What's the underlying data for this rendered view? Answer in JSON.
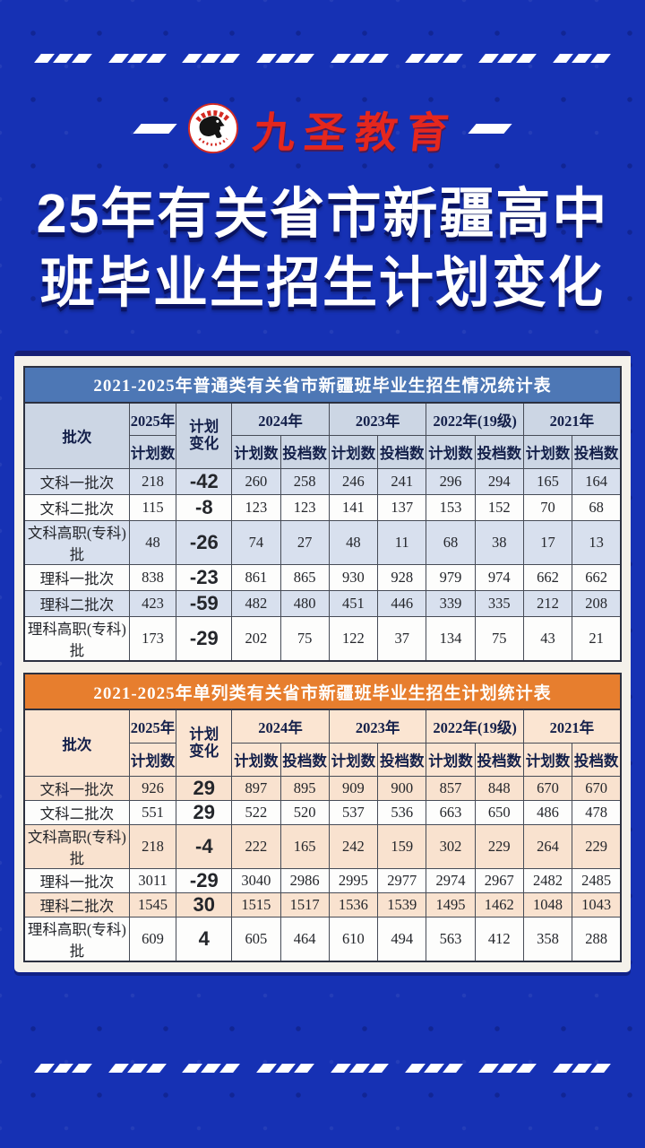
{
  "logo": {
    "text": "九圣教育",
    "badge_icon": "horse-badge"
  },
  "title": {
    "line1": "25年有关省市新疆高中",
    "line2": "班毕业生招生计划变化"
  },
  "colors": {
    "background": "#1631b4",
    "table1_accent": "#4d77b5",
    "table2_accent": "#e77e2e",
    "negative": "#d2232b",
    "positive": "#2e55c0"
  },
  "table1": {
    "title": "2021-2025年普通类有关省市新疆班毕业生招生情况统计表",
    "header": {
      "batch": "批次",
      "y2025": "2025年",
      "plan_change_line1": "计划",
      "plan_change_line2": "变化",
      "years": [
        "2024年",
        "2023年",
        "2022年(19级)",
        "2021年"
      ],
      "plan_label": "计划数",
      "file_label": "投档数"
    },
    "rows": [
      {
        "batch": "文科一批次",
        "plan2025": "218",
        "change": "-42",
        "values": [
          "260",
          "258",
          "246",
          "241",
          "296",
          "294",
          "165",
          "164"
        ]
      },
      {
        "batch": "文科二批次",
        "plan2025": "115",
        "change": "-8",
        "values": [
          "123",
          "123",
          "141",
          "137",
          "153",
          "152",
          "70",
          "68"
        ]
      },
      {
        "batch": "文科高职(专科)批",
        "plan2025": "48",
        "change": "-26",
        "values": [
          "74",
          "27",
          "48",
          "11",
          "68",
          "38",
          "17",
          "13"
        ]
      },
      {
        "batch": "理科一批次",
        "plan2025": "838",
        "change": "-23",
        "values": [
          "861",
          "865",
          "930",
          "928",
          "979",
          "974",
          "662",
          "662"
        ]
      },
      {
        "batch": "理科二批次",
        "plan2025": "423",
        "change": "-59",
        "values": [
          "482",
          "480",
          "451",
          "446",
          "339",
          "335",
          "212",
          "208"
        ]
      },
      {
        "batch": "理科高职(专科)批",
        "plan2025": "173",
        "change": "-29",
        "values": [
          "202",
          "75",
          "122",
          "37",
          "134",
          "75",
          "43",
          "21"
        ]
      }
    ]
  },
  "table2": {
    "title": "2021-2025年单列类有关省市新疆班毕业生招生计划统计表",
    "header": {
      "batch": "批次",
      "y2025": "2025年",
      "plan_change_line1": "计划",
      "plan_change_line2": "变化",
      "years": [
        "2024年",
        "2023年",
        "2022年(19级)",
        "2021年"
      ],
      "plan_label": "计划数",
      "file_label": "投档数"
    },
    "rows": [
      {
        "batch": "文科一批次",
        "plan2025": "926",
        "change": "29",
        "values": [
          "897",
          "895",
          "909",
          "900",
          "857",
          "848",
          "670",
          "670"
        ]
      },
      {
        "batch": "文科二批次",
        "plan2025": "551",
        "change": "29",
        "values": [
          "522",
          "520",
          "537",
          "536",
          "663",
          "650",
          "486",
          "478"
        ]
      },
      {
        "batch": "文科高职(专科)批",
        "plan2025": "218",
        "change": "-4",
        "values": [
          "222",
          "165",
          "242",
          "159",
          "302",
          "229",
          "264",
          "229"
        ]
      },
      {
        "batch": "理科一批次",
        "plan2025": "3011",
        "change": "-29",
        "values": [
          "3040",
          "2986",
          "2995",
          "2977",
          "2974",
          "2967",
          "2482",
          "2485"
        ]
      },
      {
        "batch": "理科二批次",
        "plan2025": "1545",
        "change": "30",
        "values": [
          "1515",
          "1517",
          "1536",
          "1539",
          "1495",
          "1462",
          "1048",
          "1043"
        ]
      },
      {
        "batch": "理科高职(专科)批",
        "plan2025": "609",
        "change": "4",
        "values": [
          "605",
          "464",
          "610",
          "494",
          "563",
          "412",
          "358",
          "288"
        ]
      }
    ]
  }
}
